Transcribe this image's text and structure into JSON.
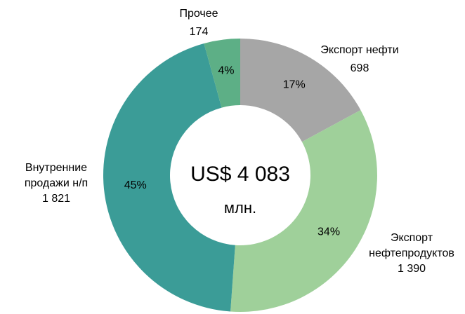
{
  "chart_data": {
    "type": "donut",
    "categories": [
      "Экспорт нефти",
      "Экспорт нефтепродуктов",
      "Внутренние продажи н/п",
      "Прочее"
    ],
    "values": [
      698,
      1390,
      1821,
      174
    ],
    "value_labels": [
      "698",
      "1 390",
      "1 821",
      "174"
    ],
    "percent_labels": [
      "17%",
      "34%",
      "45%",
      "4%"
    ],
    "colors": [
      "#a6a6a6",
      "#9fd09a",
      "#3b9c97",
      "#5daf86"
    ],
    "center_text": [
      "US$ 4 083",
      "млн."
    ]
  }
}
